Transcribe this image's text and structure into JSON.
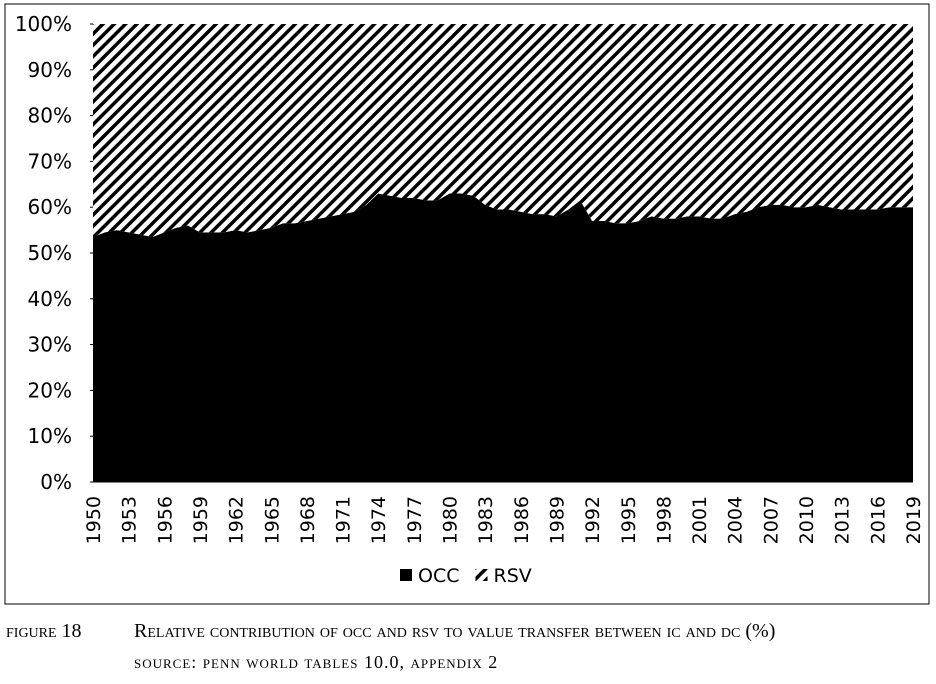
{
  "chart_data": {
    "type": "stacked_area",
    "categories": [
      "1950",
      null,
      null,
      "1953",
      null,
      null,
      "1956",
      null,
      null,
      "1959",
      null,
      null,
      "1962",
      null,
      null,
      "1965",
      null,
      null,
      "1968",
      null,
      null,
      "1971",
      null,
      null,
      "1974",
      null,
      null,
      "1977",
      null,
      null,
      "1980",
      null,
      null,
      "1983",
      null,
      null,
      "1986",
      null,
      null,
      "1989",
      null,
      null,
      "1992",
      null,
      null,
      "1995",
      null,
      null,
      "1998",
      null,
      null,
      "2001",
      null,
      null,
      "2004",
      null,
      null,
      "2007",
      null,
      null,
      "2010",
      null,
      null,
      "2013",
      null,
      null,
      "2016",
      null,
      null,
      "2019"
    ],
    "series": [
      {
        "name": "OCC",
        "color": "#000000",
        "pattern": "solid",
        "values": [
          53.5,
          54.5,
          55,
          54.5,
          54,
          53.5,
          54.5,
          55.5,
          56,
          54.5,
          54.5,
          54.5,
          55,
          54.5,
          55,
          55.5,
          56.5,
          56.5,
          57,
          57.5,
          58,
          58.5,
          59,
          60.5,
          63,
          62.5,
          62,
          62,
          61.5,
          61.5,
          63,
          63,
          62.5,
          60.5,
          59.5,
          59.5,
          59,
          58.5,
          58.5,
          58,
          59.5,
          61.5,
          57,
          57,
          56.5,
          56.5,
          57,
          58,
          57.5,
          57.5,
          58,
          58,
          57.5,
          57.5,
          58.5,
          59,
          60,
          60.5,
          60.5,
          60,
          60,
          60.5,
          60,
          59.5,
          59.5,
          59.5,
          59.5,
          60,
          60,
          60
        ]
      },
      {
        "name": "RSV",
        "color": "#000000",
        "pattern": "hatch",
        "values": [
          46.5,
          45.5,
          45,
          45.5,
          46,
          46.5,
          45.5,
          44.5,
          44,
          45.5,
          45.5,
          45.5,
          45,
          45.5,
          45,
          44.5,
          43.5,
          43.5,
          43,
          42.5,
          42,
          41.5,
          41,
          39.5,
          37,
          37.5,
          38,
          38,
          38.5,
          38.5,
          37,
          37,
          37.5,
          39.5,
          40.5,
          40.5,
          41,
          41.5,
          41.5,
          42,
          40.5,
          38.5,
          43,
          43,
          43.5,
          43.5,
          43,
          42,
          42.5,
          42.5,
          42,
          42,
          42.5,
          42.5,
          41.5,
          41,
          40,
          39.5,
          39.5,
          40,
          40,
          39.5,
          40,
          40.5,
          40.5,
          40.5,
          40.5,
          40,
          40,
          40
        ]
      }
    ],
    "ylim": [
      0,
      100
    ],
    "yticks": [
      {
        "value": 0,
        "label": "0%"
      },
      {
        "value": 10,
        "label": "10%"
      },
      {
        "value": 20,
        "label": "20%"
      },
      {
        "value": 30,
        "label": "30%"
      },
      {
        "value": 40,
        "label": "40%"
      },
      {
        "value": 50,
        "label": "50%"
      },
      {
        "value": 60,
        "label": "60%"
      },
      {
        "value": 70,
        "label": "70%"
      },
      {
        "value": 80,
        "label": "80%"
      },
      {
        "value": 90,
        "label": "90%"
      },
      {
        "value": 100,
        "label": "100%"
      }
    ],
    "legend": "bottom",
    "figure_label": "figure 18",
    "caption": "Relative contribution of occ and rsv to value transfer between ic and dc (%)",
    "source": "source: penn world tables 10.0, appendix 2"
  }
}
